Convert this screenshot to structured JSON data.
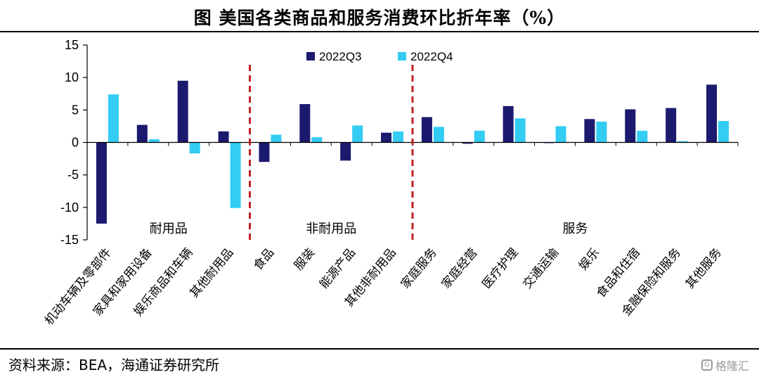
{
  "title": "图  美国各类商品和服务消费环比折年率（%）",
  "source": "资料来源：BEA，海通证券研究所",
  "watermark": "格隆汇",
  "colors": {
    "q3": "#1b1a6e",
    "q4": "#33ccf2",
    "divider": "#c0211f",
    "axis": "#000000"
  },
  "chart_data": {
    "type": "bar",
    "categories": [
      "机动车辆及零部件",
      "家具和家用设备",
      "娱乐商品和车辆",
      "其他耐用品",
      "食品",
      "服装",
      "能源产品",
      "其他非耐用品",
      "家庭服务",
      "家庭经营",
      "医疗护理",
      "交通运输",
      "娱乐",
      "食品和住宿",
      "金融保险和服务",
      "其他服务"
    ],
    "series": [
      {
        "name": "2022Q3",
        "values": [
          -12.5,
          2.7,
          9.5,
          1.7,
          -3.0,
          5.9,
          -2.8,
          1.5,
          3.9,
          -0.2,
          5.6,
          -0.1,
          3.6,
          5.1,
          5.3,
          8.9
        ]
      },
      {
        "name": "2022Q4",
        "values": [
          7.4,
          0.5,
          -1.7,
          -10.1,
          1.2,
          0.8,
          2.6,
          1.7,
          2.4,
          1.8,
          3.7,
          2.5,
          3.2,
          1.8,
          0.2,
          3.3
        ]
      }
    ],
    "ylim": [
      -15,
      15
    ],
    "yticks": [
      15,
      10,
      5,
      0,
      -5,
      -10,
      -15
    ],
    "groups": [
      {
        "label": "耐用品",
        "start": 0,
        "end": 3
      },
      {
        "label": "非耐用品",
        "start": 4,
        "end": 7
      },
      {
        "label": "服务",
        "start": 8,
        "end": 15
      }
    ],
    "dividers_after": [
      3,
      7
    ],
    "legend_position": "top-center"
  }
}
